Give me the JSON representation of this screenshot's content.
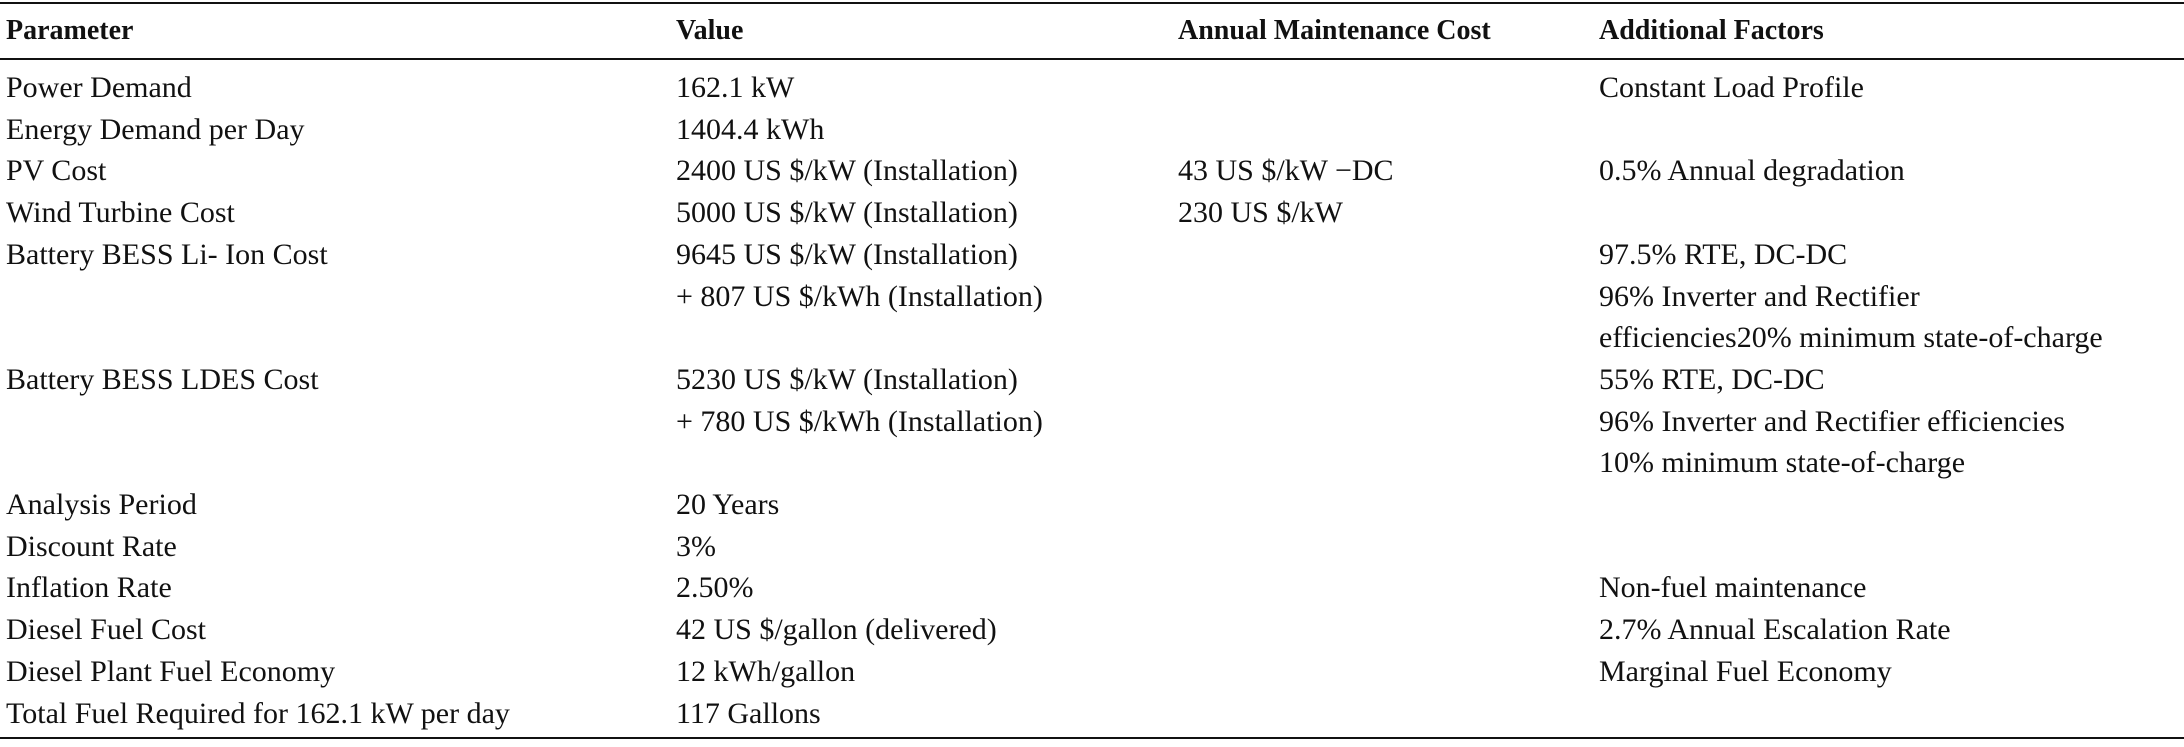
{
  "table": {
    "header": [
      "Parameter",
      "Value",
      "Annual Maintenance Cost",
      "Additional Factors"
    ],
    "rows": [
      [
        [
          "Power Demand"
        ],
        [
          "162.1 kW"
        ],
        [],
        [
          "Constant Load Profile"
        ]
      ],
      [
        [
          "Energy Demand per Day"
        ],
        [
          "1404.4 kWh"
        ],
        [],
        []
      ],
      [
        [
          "PV Cost"
        ],
        [
          "2400 US $/kW (Installation)"
        ],
        [
          "43 US $/kW −DC"
        ],
        [
          "0.5% Annual degradation"
        ]
      ],
      [
        [
          "Wind Turbine Cost"
        ],
        [
          "5000 US $/kW (Installation)"
        ],
        [
          "230 US $/kW"
        ],
        []
      ],
      [
        [
          "Battery BESS Li- Ion Cost"
        ],
        [
          "9645 US $/kW (Installation)",
          "+ 807 US $/kWh (Installation)"
        ],
        [],
        [
          "97.5% RTE, DC-DC",
          "96% Inverter and Rectifier",
          "efficiencies20% minimum state-of-charge"
        ]
      ],
      [
        [
          "Battery BESS LDES Cost"
        ],
        [
          "5230 US $/kW (Installation)",
          "+ 780 US $/kWh (Installation)"
        ],
        [],
        [
          "55% RTE, DC-DC",
          "96% Inverter and Rectifier efficiencies",
          "10% minimum state-of-charge"
        ]
      ],
      [
        [
          "Analysis Period"
        ],
        [
          "20 Years"
        ],
        [],
        []
      ],
      [
        [
          "Discount Rate"
        ],
        [
          "3%"
        ],
        [],
        []
      ],
      [
        [
          "Inflation Rate"
        ],
        [
          "2.50%"
        ],
        [],
        [
          "Non-fuel maintenance"
        ]
      ],
      [
        [
          "Diesel Fuel Cost"
        ],
        [
          "42 US $/gallon (delivered)"
        ],
        [],
        [
          "2.7% Annual Escalation Rate"
        ]
      ],
      [
        [
          "Diesel Plant Fuel Economy"
        ],
        [
          "12 kWh/gallon"
        ],
        [],
        [
          "Marginal Fuel Economy"
        ]
      ],
      [
        [
          "Total Fuel Required for 162.1 kW per day"
        ],
        [
          "117 Gallons"
        ],
        [],
        []
      ]
    ]
  }
}
